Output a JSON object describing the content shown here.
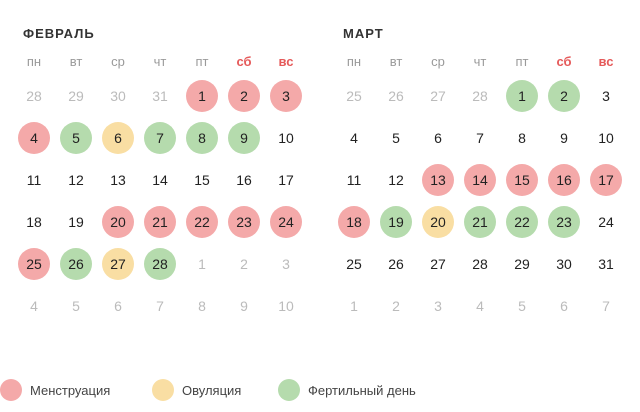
{
  "colors": {
    "menstruation": "#f4a9a9",
    "ovulation": "#f9dea3",
    "fertile": "#b5dbad",
    "weekend_text": "#e55a5a"
  },
  "months": [
    {
      "title": "ФЕВРАЛЬ",
      "weekdays": [
        {
          "label": "пн"
        },
        {
          "label": "вт"
        },
        {
          "label": "ср"
        },
        {
          "label": "чт"
        },
        {
          "label": "пт"
        },
        {
          "label": "сб",
          "weekend": true
        },
        {
          "label": "вс",
          "weekend": true
        }
      ],
      "days": [
        {
          "n": "28",
          "out": true
        },
        {
          "n": "29",
          "out": true
        },
        {
          "n": "30",
          "out": true
        },
        {
          "n": "31",
          "out": true
        },
        {
          "n": "1",
          "mark": "menstruation"
        },
        {
          "n": "2",
          "mark": "menstruation"
        },
        {
          "n": "3",
          "mark": "menstruation"
        },
        {
          "n": "4",
          "mark": "menstruation"
        },
        {
          "n": "5",
          "mark": "fertile"
        },
        {
          "n": "6",
          "mark": "ovulation"
        },
        {
          "n": "7",
          "mark": "fertile"
        },
        {
          "n": "8",
          "mark": "fertile"
        },
        {
          "n": "9",
          "mark": "fertile"
        },
        {
          "n": "10"
        },
        {
          "n": "11"
        },
        {
          "n": "12"
        },
        {
          "n": "13"
        },
        {
          "n": "14"
        },
        {
          "n": "15"
        },
        {
          "n": "16"
        },
        {
          "n": "17"
        },
        {
          "n": "18"
        },
        {
          "n": "19"
        },
        {
          "n": "20",
          "mark": "menstruation"
        },
        {
          "n": "21",
          "mark": "menstruation"
        },
        {
          "n": "22",
          "mark": "menstruation"
        },
        {
          "n": "23",
          "mark": "menstruation"
        },
        {
          "n": "24",
          "mark": "menstruation"
        },
        {
          "n": "25",
          "mark": "menstruation"
        },
        {
          "n": "26",
          "mark": "fertile"
        },
        {
          "n": "27",
          "mark": "ovulation"
        },
        {
          "n": "28",
          "mark": "fertile"
        },
        {
          "n": "1",
          "out": true
        },
        {
          "n": "2",
          "out": true
        },
        {
          "n": "3",
          "out": true
        },
        {
          "n": "4",
          "out": true
        },
        {
          "n": "5",
          "out": true
        },
        {
          "n": "6",
          "out": true
        },
        {
          "n": "7",
          "out": true
        },
        {
          "n": "8",
          "out": true
        },
        {
          "n": "9",
          "out": true
        },
        {
          "n": "10",
          "out": true
        }
      ]
    },
    {
      "title": "МАРТ",
      "weekdays": [
        {
          "label": "пн"
        },
        {
          "label": "вт"
        },
        {
          "label": "ср"
        },
        {
          "label": "чт"
        },
        {
          "label": "пт"
        },
        {
          "label": "сб",
          "weekend": true
        },
        {
          "label": "вс",
          "weekend": true
        }
      ],
      "days": [
        {
          "n": "25",
          "out": true
        },
        {
          "n": "26",
          "out": true
        },
        {
          "n": "27",
          "out": true
        },
        {
          "n": "28",
          "out": true
        },
        {
          "n": "1",
          "mark": "fertile"
        },
        {
          "n": "2",
          "mark": "fertile"
        },
        {
          "n": "3"
        },
        {
          "n": "4"
        },
        {
          "n": "5"
        },
        {
          "n": "6"
        },
        {
          "n": "7"
        },
        {
          "n": "8"
        },
        {
          "n": "9"
        },
        {
          "n": "10"
        },
        {
          "n": "11"
        },
        {
          "n": "12"
        },
        {
          "n": "13",
          "mark": "menstruation"
        },
        {
          "n": "14",
          "mark": "menstruation"
        },
        {
          "n": "15",
          "mark": "menstruation"
        },
        {
          "n": "16",
          "mark": "menstruation"
        },
        {
          "n": "17",
          "mark": "menstruation"
        },
        {
          "n": "18",
          "mark": "menstruation"
        },
        {
          "n": "19",
          "mark": "fertile"
        },
        {
          "n": "20",
          "mark": "ovulation"
        },
        {
          "n": "21",
          "mark": "fertile"
        },
        {
          "n": "22",
          "mark": "fertile"
        },
        {
          "n": "23",
          "mark": "fertile"
        },
        {
          "n": "24"
        },
        {
          "n": "25"
        },
        {
          "n": "26"
        },
        {
          "n": "27"
        },
        {
          "n": "28"
        },
        {
          "n": "29"
        },
        {
          "n": "30"
        },
        {
          "n": "31"
        },
        {
          "n": "1",
          "out": true
        },
        {
          "n": "2",
          "out": true
        },
        {
          "n": "3",
          "out": true
        },
        {
          "n": "4",
          "out": true
        },
        {
          "n": "5",
          "out": true
        },
        {
          "n": "6",
          "out": true
        },
        {
          "n": "7",
          "out": true
        }
      ]
    }
  ],
  "legend": [
    {
      "label": "Менструация",
      "mark": "menstruation"
    },
    {
      "label": "Овуляция",
      "mark": "ovulation"
    },
    {
      "label": "Фертильный день",
      "mark": "fertile"
    }
  ]
}
